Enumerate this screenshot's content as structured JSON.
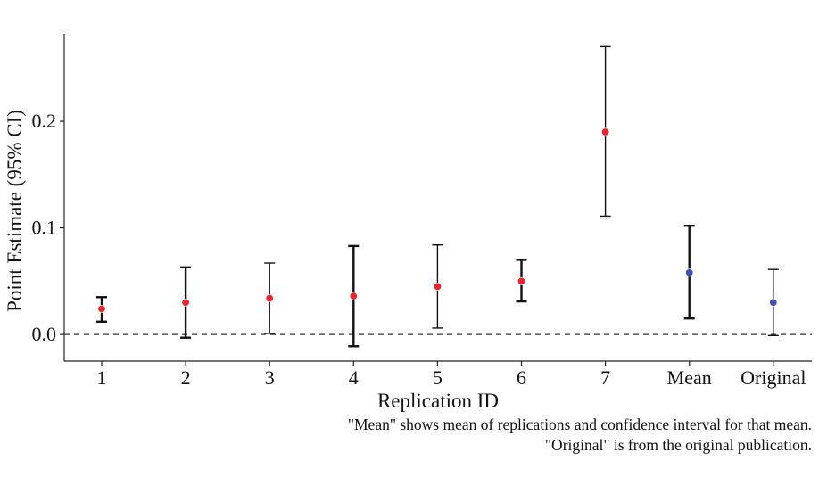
{
  "chart_data": {
    "type": "scatter",
    "subtype": "point-estimate-with-error-bars",
    "xlabel": "Replication ID",
    "ylabel": "Point Estimate (95% CI)",
    "categories": [
      "1",
      "2",
      "3",
      "4",
      "5",
      "6",
      "7",
      "Mean",
      "Original"
    ],
    "estimates": [
      0.024,
      0.03,
      0.034,
      0.036,
      0.045,
      0.05,
      0.19,
      0.058,
      0.03
    ],
    "ci_lower": [
      0.012,
      -0.003,
      0.001,
      -0.011,
      0.006,
      0.031,
      0.111,
      0.015,
      -0.001
    ],
    "ci_upper": [
      0.035,
      0.063,
      0.067,
      0.083,
      0.084,
      0.07,
      0.27,
      0.102,
      0.061
    ],
    "point_colors": [
      "#e8242c",
      "#e8242c",
      "#e8242c",
      "#e8242c",
      "#e8242c",
      "#e8242c",
      "#e8242c",
      "#3f51b5",
      "#3f51b5"
    ],
    "bar_thickness": [
      "thick",
      "thick",
      "thin",
      "thick",
      "thin",
      "thick",
      "thin",
      "thick",
      "thin"
    ],
    "yticks": [
      0.0,
      0.1,
      0.2
    ],
    "ytick_labels": [
      "0.0",
      "0.1",
      "0.2"
    ],
    "ylim": [
      -0.025,
      0.282
    ],
    "reference_line": {
      "y": 0.0,
      "style": "dashed"
    },
    "grid": false,
    "notes": [
      "\"Mean\" shows mean of replications and confidence interval for that mean.",
      "\"Original\" is from the original publication."
    ]
  }
}
